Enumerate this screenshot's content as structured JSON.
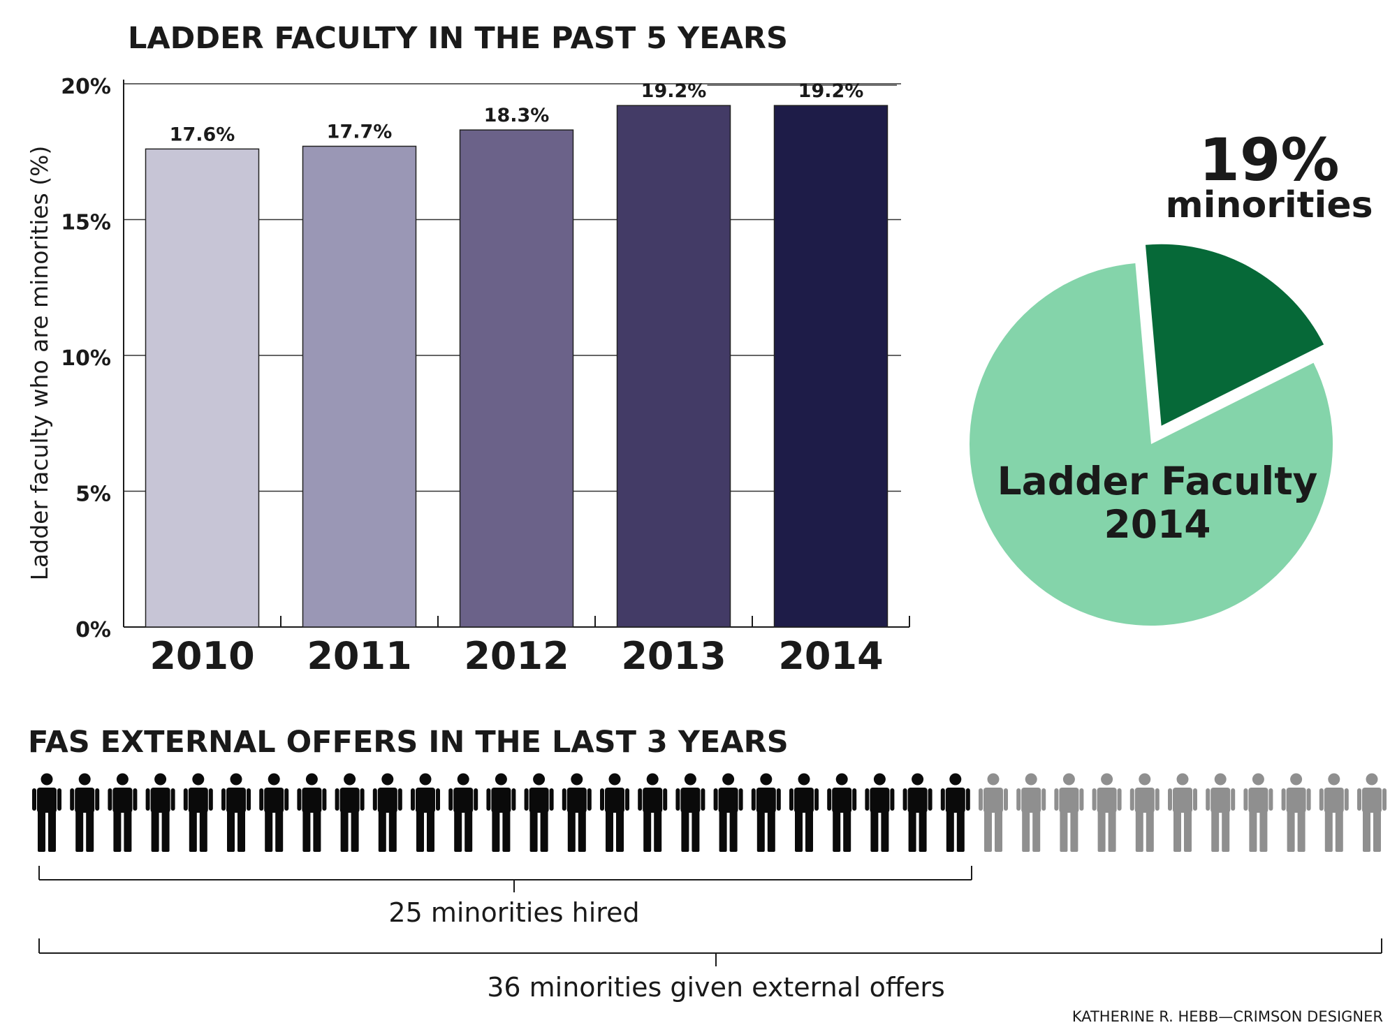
{
  "credit": "KATHERINE R. HEBB—CRIMSON DESIGNER",
  "colors": {
    "bars": [
      "#c7c5d6",
      "#9a97b5",
      "#6b6289",
      "#433b66",
      "#1e1c48"
    ],
    "pie_main": "#84d4aa",
    "pie_slice": "#066938",
    "icon_hired": "#0a0a0a",
    "icon_offered": "#8f8f8f",
    "gridline": "#333333"
  },
  "chart_data": [
    {
      "type": "bar",
      "title": "LADDER FACULTY IN THE PAST 5 YEARS",
      "ylabel": "Ladder faculty who are minorities (%)",
      "xlabel": "",
      "categories": [
        "2010",
        "2011",
        "2012",
        "2013",
        "2014"
      ],
      "values": [
        17.6,
        17.7,
        18.3,
        19.2,
        19.2
      ],
      "value_labels": [
        "17.6%",
        "17.7%",
        "18.3%",
        "19.2%",
        "19.2%"
      ],
      "ylim": [
        0,
        20
      ],
      "yticks": [
        0,
        5,
        10,
        15,
        20
      ],
      "ytick_labels": [
        "0%",
        "5%",
        "10%",
        "15%",
        "20%"
      ],
      "grid": true
    },
    {
      "type": "pie",
      "labels": [
        "minorities",
        "Ladder Faculty 2014"
      ],
      "values": [
        19,
        81
      ],
      "slice_label": {
        "pct": "19%",
        "name": "minorities"
      },
      "center_label": {
        "line1": "Ladder Faculty",
        "line2": "2014"
      },
      "exploded": "minorities"
    },
    {
      "type": "pictogram",
      "title": "FAS EXTERNAL OFFERS IN THE LAST 3 YEARS",
      "total": 36,
      "highlighted": 25,
      "hired_label": "25 minorities hired",
      "offers_label": "36 minorities given external offers"
    }
  ]
}
